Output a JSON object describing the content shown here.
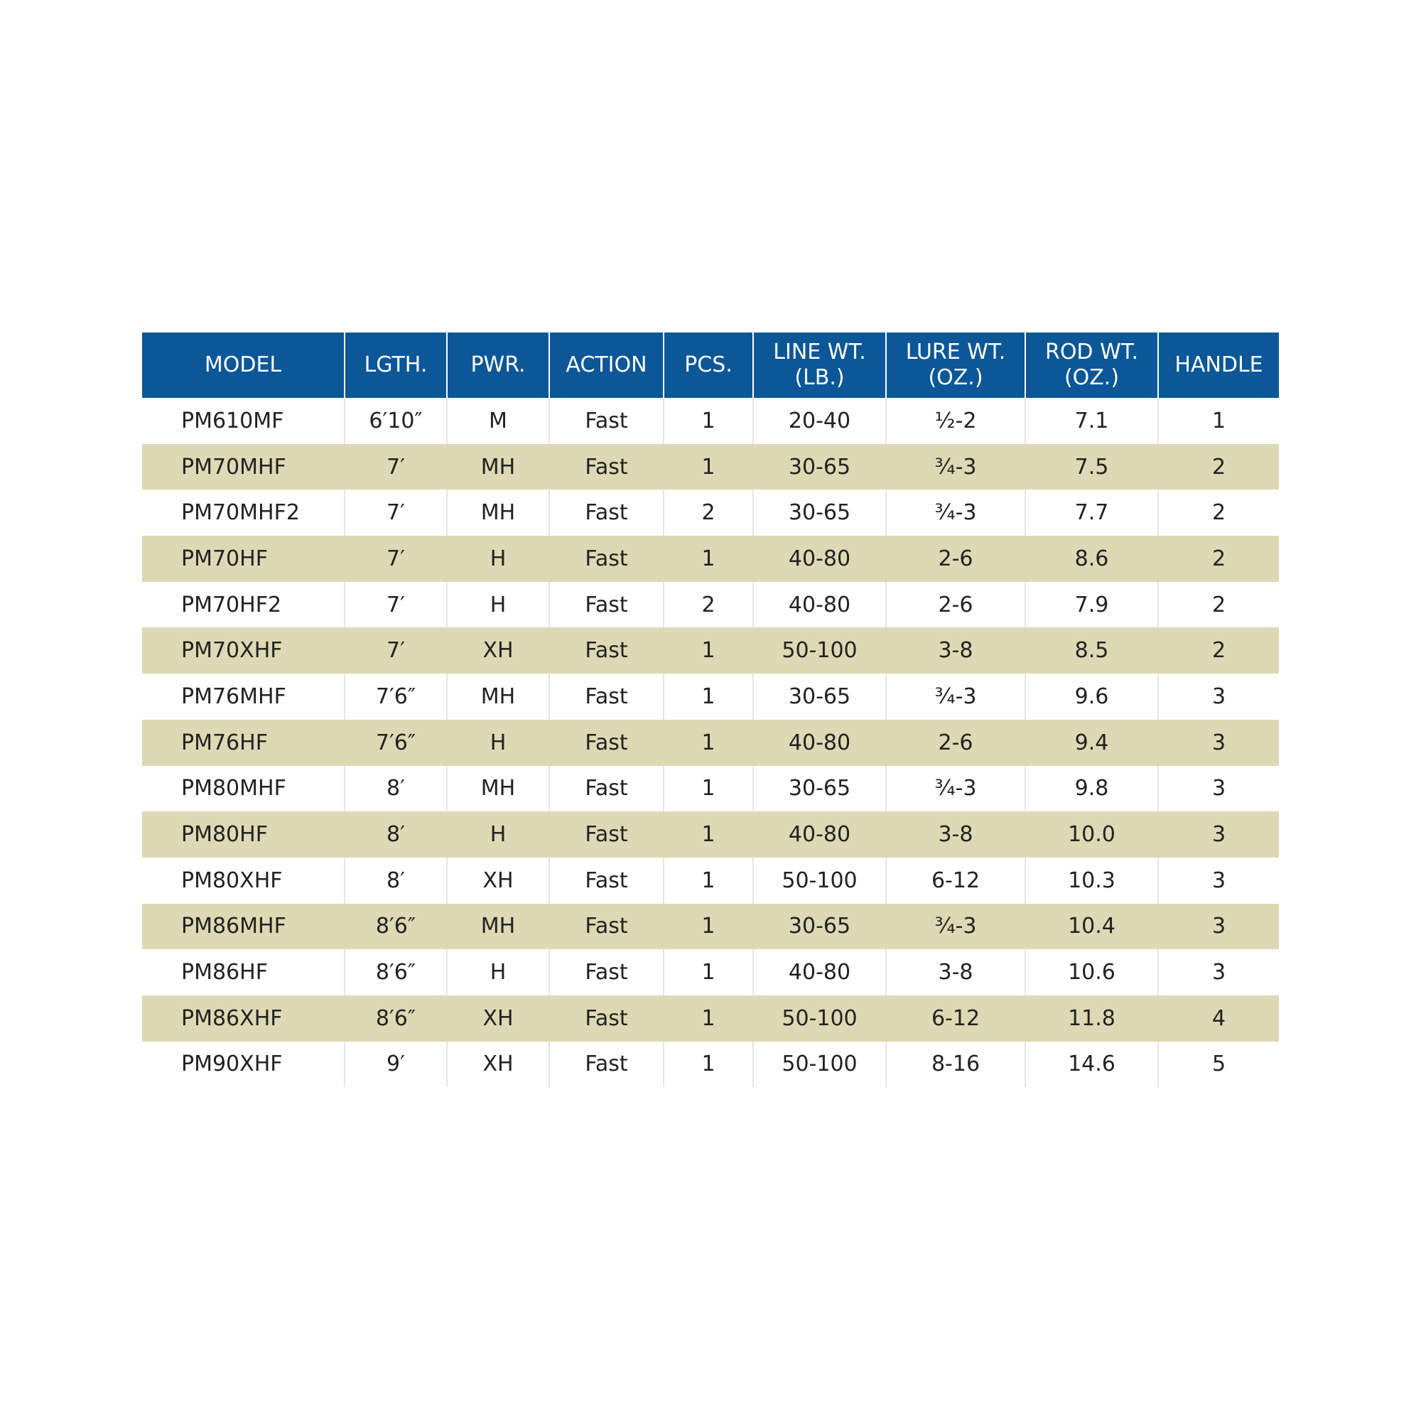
{
  "table": {
    "header": [
      [
        "MODEL"
      ],
      [
        "LGTH."
      ],
      [
        "PWR."
      ],
      [
        "ACTION"
      ],
      [
        "PCS."
      ],
      [
        "LINE WT.",
        "(LB.)"
      ],
      [
        "LURE WT.",
        "(OZ.)"
      ],
      [
        "ROD WT.",
        "(OZ.)"
      ],
      [
        "HANDLE"
      ]
    ],
    "rows": [
      [
        "PM610MF",
        "6′10″",
        "M",
        "Fast",
        "1",
        "20-40",
        "½-2",
        "7.1",
        "1"
      ],
      [
        "PM70MHF",
        "7′",
        "MH",
        "Fast",
        "1",
        "30-65",
        "¾-3",
        "7.5",
        "2"
      ],
      [
        "PM70MHF2",
        "7′",
        "MH",
        "Fast",
        "2",
        "30-65",
        "¾-3",
        "7.7",
        "2"
      ],
      [
        "PM70HF",
        "7′",
        "H",
        "Fast",
        "1",
        "40-80",
        "2-6",
        "8.6",
        "2"
      ],
      [
        "PM70HF2",
        "7′",
        "H",
        "Fast",
        "2",
        "40-80",
        "2-6",
        "7.9",
        "2"
      ],
      [
        "PM70XHF",
        "7′",
        "XH",
        "Fast",
        "1",
        "50-100",
        "3-8",
        "8.5",
        "2"
      ],
      [
        "PM76MHF",
        "7′6″",
        "MH",
        "Fast",
        "1",
        "30-65",
        "¾-3",
        "9.6",
        "3"
      ],
      [
        "PM76HF",
        "7′6″",
        "H",
        "Fast",
        "1",
        "40-80",
        "2-6",
        "9.4",
        "3"
      ],
      [
        "PM80MHF",
        "8′",
        "MH",
        "Fast",
        "1",
        "30-65",
        "¾-3",
        "9.8",
        "3"
      ],
      [
        "PM80HF",
        "8′",
        "H",
        "Fast",
        "1",
        "40-80",
        "3-8",
        "10.0",
        "3"
      ],
      [
        "PM80XHF",
        "8′",
        "XH",
        "Fast",
        "1",
        "50-100",
        "6-12",
        "10.3",
        "3"
      ],
      [
        "PM86MHF",
        "8′6″",
        "MH",
        "Fast",
        "1",
        "30-65",
        "¾-3",
        "10.4",
        "3"
      ],
      [
        "PM86HF",
        "8′6″",
        "H",
        "Fast",
        "1",
        "40-80",
        "3-8",
        "10.6",
        "3"
      ],
      [
        "PM86XHF",
        "8′6″",
        "XH",
        "Fast",
        "1",
        "50-100",
        "6-12",
        "11.8",
        "4"
      ],
      [
        "PM90XHF",
        "9′",
        "XH",
        "Fast",
        "1",
        "50-100",
        "8-16",
        "14.6",
        "5"
      ]
    ]
  }
}
